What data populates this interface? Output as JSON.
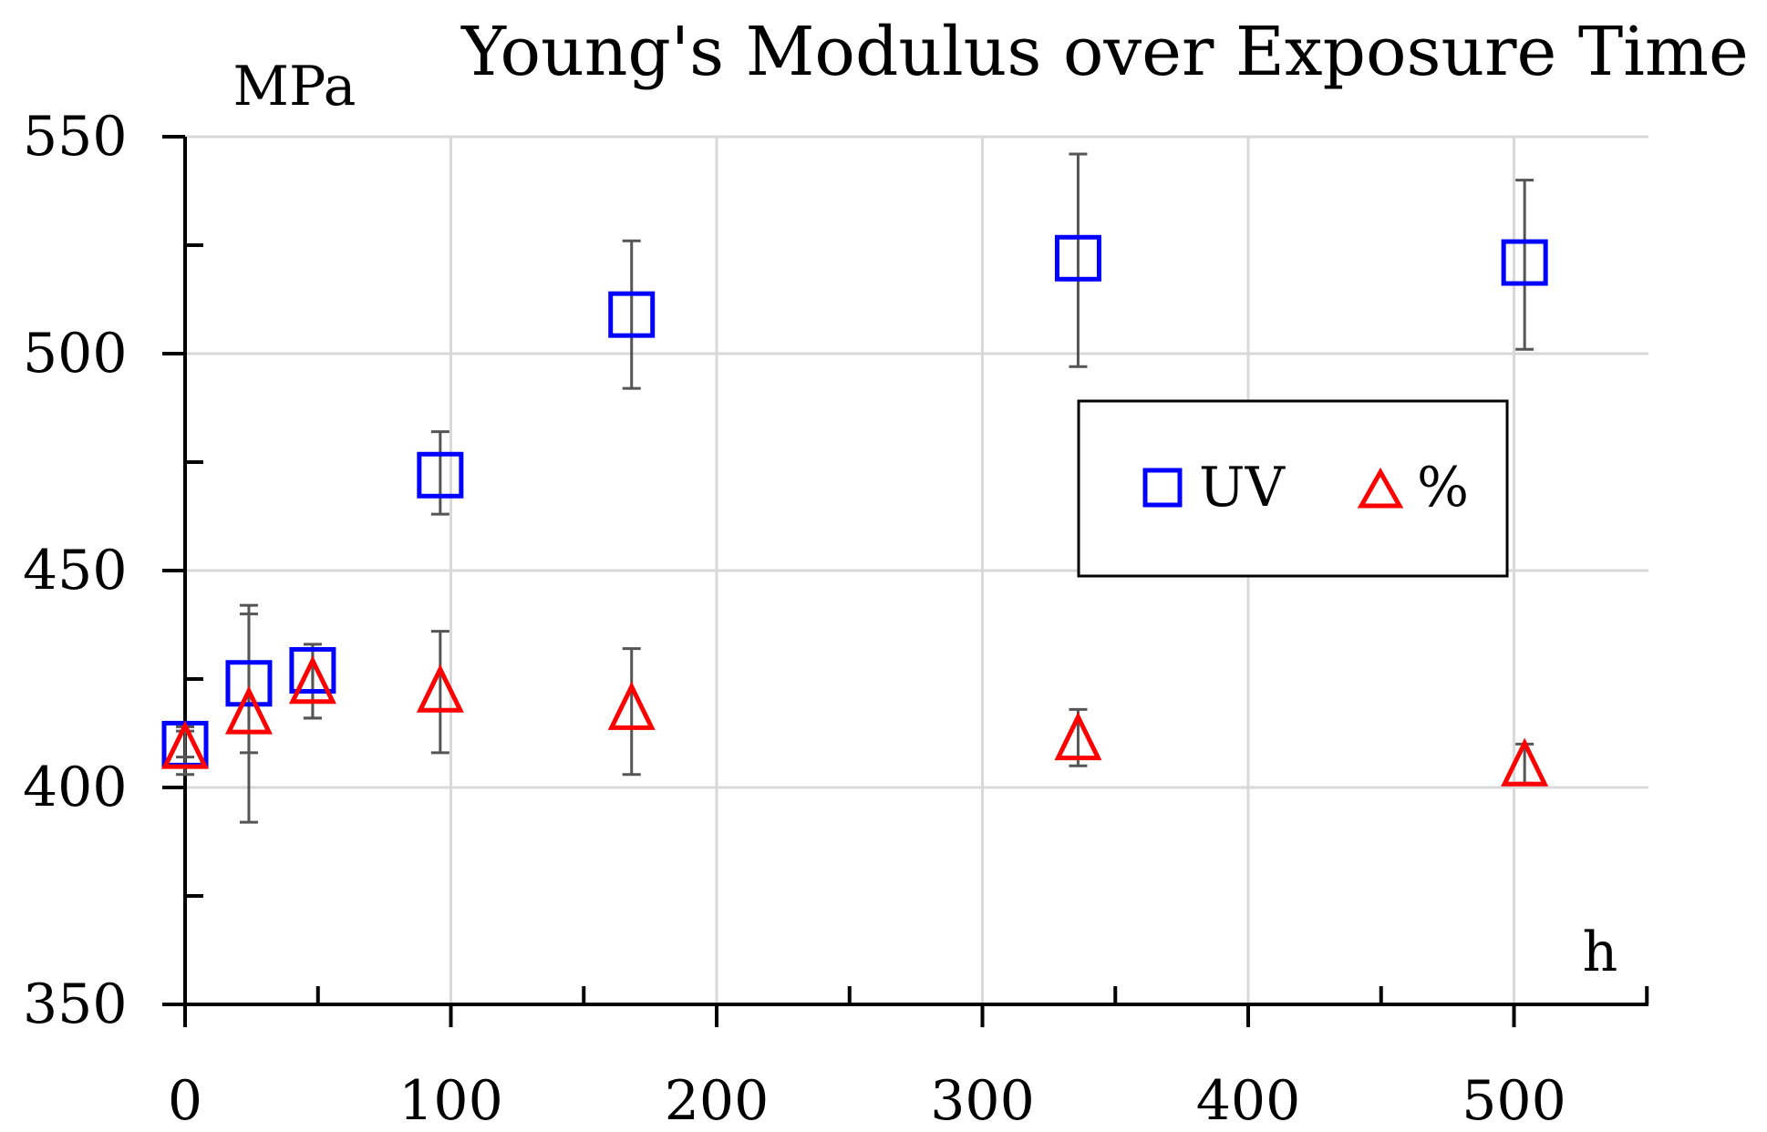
{
  "chart_data": {
    "type": "scatter",
    "title": "Young's Modulus over Exposure Time",
    "xlabel": "h",
    "ylabel": "MPa",
    "xlim": [
      0,
      550
    ],
    "ylim": [
      350,
      550
    ],
    "x_ticks": [
      "0",
      "100",
      "200",
      "300",
      "400",
      "500"
    ],
    "y_ticks": [
      "350",
      "400",
      "450",
      "500",
      "550"
    ],
    "grid": true,
    "legend": "upper-right, boxed",
    "series": [
      {
        "name": "UV",
        "marker": "square",
        "color": "#0000ff",
        "x": [
          0,
          24,
          48,
          96,
          168,
          336,
          504
        ],
        "y": [
          410,
          424,
          427,
          472,
          509,
          522,
          521
        ],
        "err_low": [
          407,
          392,
          416,
          463,
          492,
          497,
          501
        ],
        "err_high": [
          413,
          442,
          433,
          482,
          526,
          546,
          540
        ]
      },
      {
        "name": "%",
        "marker": "triangle",
        "color": "#ff0000",
        "x": [
          0,
          24,
          48,
          96,
          168,
          336,
          504
        ],
        "y": [
          409,
          417,
          424,
          422,
          418,
          411,
          405
        ],
        "err_low": [
          403,
          408,
          416,
          408,
          403,
          405,
          401
        ],
        "err_high": [
          414,
          440,
          432,
          436,
          432,
          418,
          410
        ]
      }
    ],
    "errorbar_color": "#555555"
  }
}
